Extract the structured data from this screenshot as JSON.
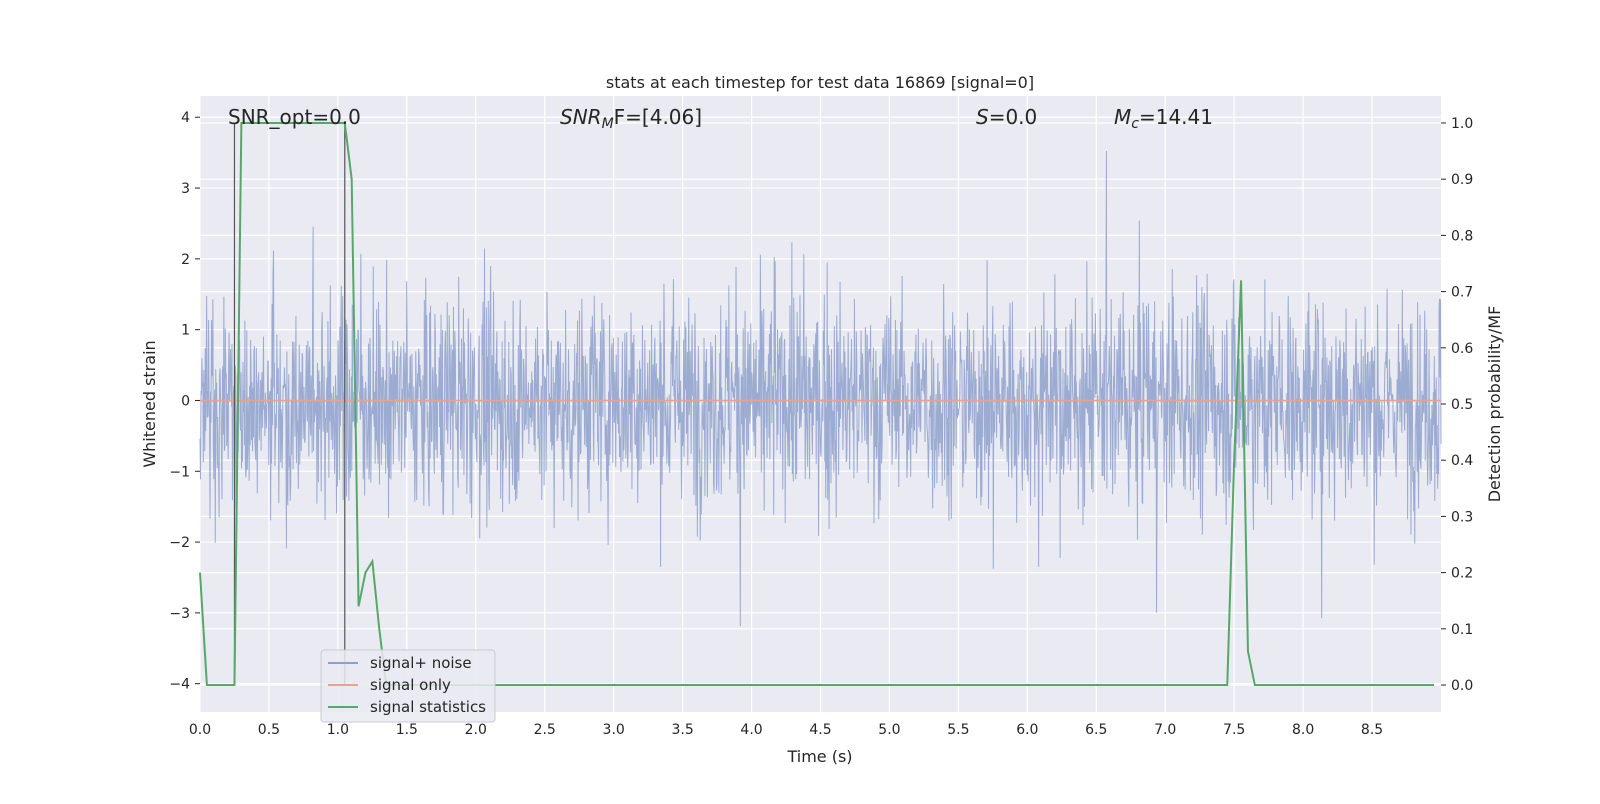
{
  "chart_data": {
    "type": "line",
    "title": "stats at each timestep for test data 16869 [signal=0]",
    "xlabel": "Time (s)",
    "ylabel": "Whitened strain",
    "y2label": "Detection probability/MF",
    "xlim": [
      0,
      9
    ],
    "ylim": [
      -4.4,
      4.3
    ],
    "y2lim": [
      -0.048,
      1.048
    ],
    "xticks": [
      "0.0",
      "0.5",
      "1.0",
      "1.5",
      "2.0",
      "2.5",
      "3.0",
      "3.5",
      "4.0",
      "4.5",
      "5.0",
      "5.5",
      "6.0",
      "6.5",
      "7.0",
      "7.5",
      "8.0",
      "8.5"
    ],
    "yticks": [
      "4",
      "3",
      "2",
      "1",
      "0",
      "−1",
      "−2",
      "−3",
      "−4"
    ],
    "y2ticks": [
      "1.0",
      "0.9",
      "0.8",
      "0.7",
      "0.6",
      "0.5",
      "0.4",
      "0.3",
      "0.2",
      "0.1",
      "0.0"
    ],
    "grid": true,
    "legend_position": "lower-left",
    "annotations": [
      {
        "label": "SNR_opt=0.0"
      },
      {
        "label": "SNR",
        "sub": "M",
        "suffix": "F=[4.06]"
      },
      {
        "label": "S",
        "suffix": "=0.0"
      },
      {
        "label": "M",
        "sub": "c",
        "suffix": "=14.41"
      }
    ],
    "series": [
      {
        "name": "signal+ noise",
        "color": "#8da0cb",
        "note_style": "dense noise, amplitude ~ ±1.6 with spikes to ±4"
      },
      {
        "name": "signal only",
        "color": "#e8a38a",
        "values_constant": 0
      },
      {
        "name": "signal statistics",
        "color": "#55a868",
        "x": [
          0.0,
          0.05,
          0.1,
          0.15,
          0.2,
          0.25,
          0.3,
          0.35,
          0.4,
          0.5,
          0.6,
          0.7,
          0.8,
          0.9,
          1.0,
          1.05,
          1.1,
          1.15,
          1.2,
          1.25,
          1.3,
          1.35,
          1.4,
          1.5,
          2.0,
          3.0,
          4.0,
          5.0,
          6.0,
          7.0,
          7.4,
          7.45,
          7.5,
          7.55,
          7.6,
          7.65,
          7.7,
          7.8,
          8.5,
          8.95
        ],
        "values": [
          0.2,
          0.0,
          0.0,
          0.0,
          0.0,
          0.0,
          1.0,
          1.0,
          1.0,
          1.0,
          1.0,
          1.0,
          1.0,
          1.0,
          1.0,
          1.0,
          0.9,
          0.14,
          0.2,
          0.22,
          0.1,
          0.0,
          0.0,
          0.0,
          0.0,
          0.0,
          0.0,
          0.0,
          0.0,
          0.0,
          0.0,
          0.0,
          0.4,
          0.72,
          0.06,
          0.0,
          0.0,
          0.0,
          0.0,
          0.0
        ]
      }
    ],
    "vlines": [
      0.25,
      1.05
    ]
  }
}
